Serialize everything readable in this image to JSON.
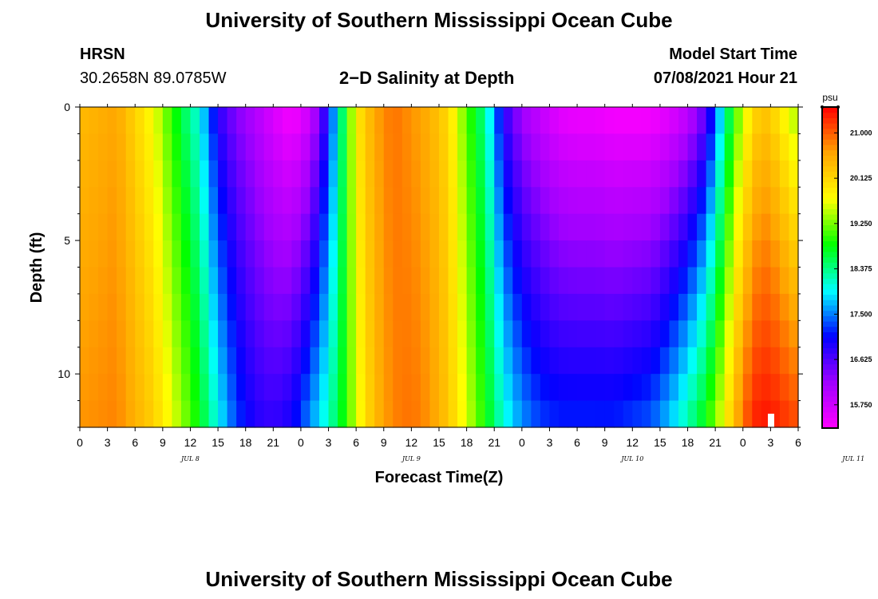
{
  "page": {
    "title": "University of Southern Mississippi Ocean Cube",
    "footer_title": "University of Southern Mississippi Ocean Cube",
    "station": "HRSN",
    "coordinates": "30.2658N  89.0785W",
    "plot_title": "2−D Salinity at Depth",
    "model_start_label": "Model Start Time",
    "model_start_value": "07/08/2021 Hour 21"
  },
  "chart_data": {
    "type": "heatmap",
    "title": "2−D Salinity at Depth",
    "xlabel": "Forecast Time(Z)",
    "ylabel": "Depth (ft)",
    "x_range_hours": [
      0,
      78
    ],
    "y_range_ft": [
      0,
      12
    ],
    "x_tick_labels": [
      "0",
      "3",
      "6",
      "9",
      "12",
      "15",
      "18",
      "21",
      "0",
      "3",
      "6",
      "9",
      "12",
      "15",
      "18",
      "21",
      "0",
      "3",
      "6",
      "9",
      "12",
      "15",
      "18",
      "21",
      "0",
      "3",
      "6"
    ],
    "date_labels": [
      "JUL 8",
      "JUL 9",
      "JUL 10",
      "JUL 11"
    ],
    "y_ticks": [
      0,
      5,
      10
    ],
    "colorbar": {
      "unit": "psu",
      "min": 15.3,
      "max": 21.5,
      "ticks": [
        "21.000",
        "20.125",
        "19.250",
        "18.375",
        "17.500",
        "16.625",
        "15.750"
      ],
      "colors": [
        "#ff00ff",
        "#a000ff",
        "#0000ff",
        "#00ffff",
        "#00ff00",
        "#ffff00",
        "#ffa500",
        "#ff0000"
      ]
    },
    "profile_x_hours": [
      0,
      4,
      8,
      11,
      13,
      15,
      17,
      19,
      21,
      23,
      25,
      27,
      28,
      29,
      30,
      32,
      34,
      36,
      38,
      40,
      42,
      44,
      46,
      48,
      50,
      52,
      54,
      56,
      58,
      60,
      62,
      64,
      66,
      68,
      70,
      71,
      72,
      73,
      74,
      75,
      76,
      77,
      78
    ],
    "surface_salinity_psu": [
      20.4,
      20.6,
      19.7,
      18.6,
      18.0,
      16.8,
      16.3,
      16.0,
      15.6,
      15.3,
      15.7,
      17.0,
      18.0,
      18.9,
      19.9,
      20.6,
      20.9,
      20.7,
      20.5,
      20.1,
      19.1,
      18.3,
      16.8,
      16.1,
      15.8,
      15.5,
      15.4,
      15.4,
      15.3,
      15.3,
      15.3,
      15.5,
      15.8,
      16.5,
      18.1,
      18.9,
      19.5,
      20.0,
      20.3,
      20.2,
      19.9,
      19.6,
      19.3
    ],
    "bottom_salinity_psu": [
      20.7,
      20.8,
      20.2,
      19.4,
      18.8,
      18.0,
      17.3,
      16.9,
      16.8,
      17.0,
      17.6,
      18.2,
      18.6,
      19.0,
      19.6,
      20.4,
      20.8,
      20.9,
      20.7,
      20.3,
      19.6,
      18.9,
      18.1,
      17.6,
      17.3,
      17.2,
      17.2,
      17.2,
      17.2,
      17.3,
      17.4,
      17.8,
      18.3,
      18.9,
      19.8,
      20.4,
      20.9,
      21.3,
      21.4,
      21.4,
      21.3,
      21.2,
      21.1
    ]
  }
}
